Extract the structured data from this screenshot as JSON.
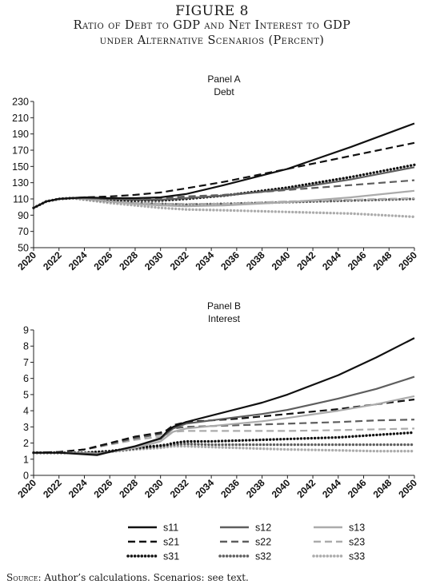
{
  "figure": {
    "title": "FIGURE 8",
    "subtitle_line1": "Ratio of Debt to GDP and Net Interest to GDP",
    "subtitle_line2": "under Alternative Scenarios (Percent)"
  },
  "source": {
    "label": "Source:",
    "text": " Author’s calculations. Scenarios: see text."
  },
  "styles": {
    "s11": {
      "color": "#111111",
      "dash": "solid",
      "label": "s11"
    },
    "s12": {
      "color": "#5e5e5e",
      "dash": "solid",
      "label": "s12"
    },
    "s13": {
      "color": "#ababab",
      "dash": "solid",
      "label": "s13"
    },
    "s21": {
      "color": "#111111",
      "dash": "dash",
      "label": "s21"
    },
    "s22": {
      "color": "#5e5e5e",
      "dash": "dash",
      "label": "s22"
    },
    "s23": {
      "color": "#ababab",
      "dash": "dash",
      "label": "s23"
    },
    "s31": {
      "color": "#111111",
      "dash": "dot",
      "label": "s31"
    },
    "s32": {
      "color": "#5e5e5e",
      "dash": "dot",
      "label": "s32"
    },
    "s33": {
      "color": "#ababab",
      "dash": "dot",
      "label": "s33"
    }
  },
  "chart_data": [
    {
      "type": "line",
      "panel": "Panel A",
      "title": "Debt",
      "xlim": [
        2020,
        2050
      ],
      "ylim": [
        50,
        230
      ],
      "yticks": [
        50,
        70,
        90,
        110,
        130,
        150,
        170,
        190,
        210,
        230
      ],
      "xticks": [
        2020,
        2022,
        2024,
        2026,
        2028,
        2030,
        2032,
        2034,
        2036,
        2038,
        2040,
        2042,
        2044,
        2046,
        2048,
        2050
      ],
      "grid": false,
      "x": [
        2020,
        2021,
        2022,
        2023,
        2024,
        2026,
        2028,
        2030,
        2032,
        2035,
        2040,
        2045,
        2050
      ],
      "series": [
        {
          "name": "s11",
          "values": [
            99,
            107,
            110,
            111,
            112,
            111,
            111,
            112,
            116,
            127,
            147,
            174,
            203
          ]
        },
        {
          "name": "s12",
          "values": [
            99,
            107,
            110,
            111,
            111,
            110,
            109,
            109,
            111,
            114,
            122,
            134,
            149
          ]
        },
        {
          "name": "s13",
          "values": [
            99,
            107,
            110,
            111,
            110,
            107,
            104,
            102,
            101,
            102,
            106,
            112,
            120
          ]
        },
        {
          "name": "s21",
          "values": [
            99,
            107,
            110,
            111,
            112,
            113,
            115,
            118,
            123,
            131,
            147,
            163,
            179
          ]
        },
        {
          "name": "s22",
          "values": [
            99,
            107,
            110,
            111,
            111,
            110,
            110,
            111,
            113,
            115,
            121,
            127,
            133
          ]
        },
        {
          "name": "s23",
          "values": [
            99,
            107,
            110,
            111,
            110,
            107,
            105,
            104,
            104,
            104,
            107,
            109,
            111
          ]
        },
        {
          "name": "s31",
          "values": [
            99,
            107,
            110,
            111,
            111,
            109,
            108,
            108,
            110,
            114,
            124,
            137,
            152
          ]
        },
        {
          "name": "s32",
          "values": [
            99,
            107,
            110,
            111,
            110,
            107,
            105,
            104,
            103,
            104,
            106,
            108,
            110
          ]
        },
        {
          "name": "s33",
          "values": [
            99,
            107,
            110,
            111,
            109,
            105,
            102,
            99,
            97,
            96,
            94,
            92,
            88
          ]
        }
      ]
    },
    {
      "type": "line",
      "panel": "Panel B",
      "title": "Interest",
      "xlim": [
        2020,
        2050
      ],
      "ylim": [
        0,
        9
      ],
      "yticks": [
        0,
        1,
        2,
        3,
        4,
        5,
        6,
        7,
        8,
        9
      ],
      "xticks": [
        2020,
        2022,
        2024,
        2026,
        2028,
        2030,
        2032,
        2034,
        2036,
        2038,
        2040,
        2042,
        2044,
        2046,
        2048,
        2050
      ],
      "grid": false,
      "x": [
        2020,
        2022,
        2024,
        2025,
        2026,
        2028,
        2030,
        2030.5,
        2031,
        2032,
        2034,
        2036,
        2038,
        2040,
        2044,
        2047,
        2050
      ],
      "series": [
        {
          "name": "s11",
          "values": [
            1.4,
            1.4,
            1.3,
            1.25,
            1.45,
            1.8,
            2.3,
            2.7,
            3.0,
            3.3,
            3.7,
            4.1,
            4.5,
            5.0,
            6.2,
            7.3,
            8.5
          ]
        },
        {
          "name": "s12",
          "values": [
            1.4,
            1.4,
            1.35,
            1.3,
            1.45,
            1.8,
            2.25,
            2.6,
            2.9,
            3.2,
            3.4,
            3.6,
            3.8,
            4.05,
            4.75,
            5.35,
            6.1
          ]
        },
        {
          "name": "s13",
          "values": [
            1.4,
            1.4,
            1.4,
            1.35,
            1.45,
            1.7,
            2.1,
            2.4,
            2.7,
            2.9,
            3.05,
            3.2,
            3.35,
            3.55,
            4.0,
            4.4,
            4.9
          ]
        },
        {
          "name": "s21",
          "values": [
            1.4,
            1.45,
            1.6,
            1.8,
            2.0,
            2.4,
            2.65,
            2.8,
            3.1,
            3.3,
            3.4,
            3.5,
            3.65,
            3.8,
            4.1,
            4.4,
            4.7
          ]
        },
        {
          "name": "s22",
          "values": [
            1.4,
            1.45,
            1.6,
            1.75,
            1.95,
            2.3,
            2.55,
            2.7,
            2.9,
            3.0,
            3.05,
            3.1,
            3.15,
            3.2,
            3.3,
            3.4,
            3.45
          ]
        },
        {
          "name": "s23",
          "values": [
            1.4,
            1.45,
            1.6,
            1.75,
            1.9,
            2.2,
            2.4,
            2.5,
            2.7,
            2.75,
            2.75,
            2.75,
            2.75,
            2.75,
            2.8,
            2.85,
            2.9
          ]
        },
        {
          "name": "s31",
          "values": [
            1.4,
            1.4,
            1.4,
            1.45,
            1.5,
            1.7,
            1.85,
            1.9,
            2.0,
            2.1,
            2.1,
            2.15,
            2.2,
            2.25,
            2.35,
            2.5,
            2.65
          ]
        },
        {
          "name": "s32",
          "values": [
            1.4,
            1.4,
            1.4,
            1.45,
            1.5,
            1.65,
            1.8,
            1.85,
            1.9,
            1.95,
            1.9,
            1.9,
            1.9,
            1.9,
            1.9,
            1.9,
            1.9
          ]
        },
        {
          "name": "s33",
          "values": [
            1.4,
            1.4,
            1.4,
            1.45,
            1.45,
            1.6,
            1.7,
            1.75,
            1.8,
            1.8,
            1.75,
            1.7,
            1.65,
            1.6,
            1.55,
            1.5,
            1.5
          ]
        }
      ]
    }
  ],
  "legend": {
    "placement": "bottom",
    "order": [
      "s11",
      "s12",
      "s13",
      "s21",
      "s22",
      "s23",
      "s31",
      "s32",
      "s33"
    ]
  }
}
